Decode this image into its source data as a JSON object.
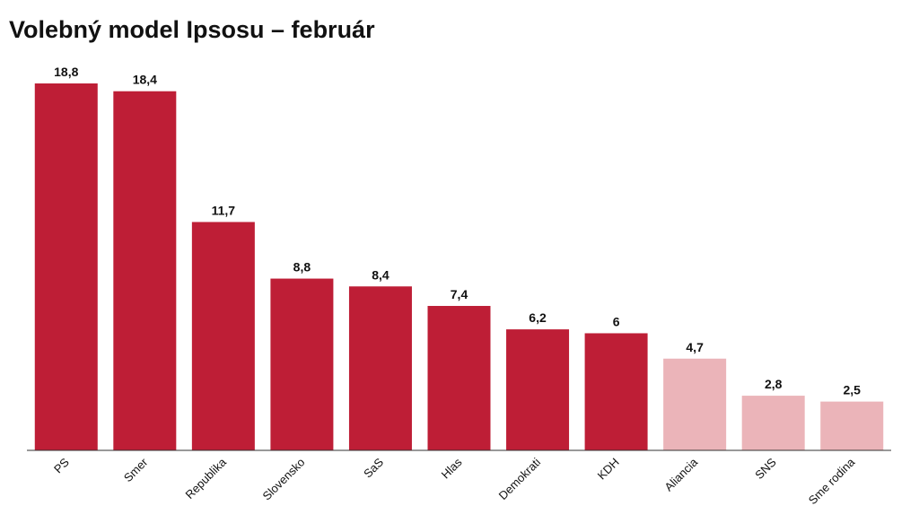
{
  "chart_data": {
    "type": "bar",
    "title": "Volebný model Ipsosu – február",
    "categories": [
      "PS",
      "Smer",
      "Republika",
      "Slovensko",
      "SaS",
      "Hlas",
      "Demokrati",
      "KDH",
      "Aliancia",
      "SNS",
      "Sme rodina"
    ],
    "values": [
      18.8,
      18.4,
      11.7,
      8.8,
      8.4,
      7.4,
      6.2,
      6,
      4.7,
      2.8,
      2.5
    ],
    "value_labels": [
      "18,8",
      "18,4",
      "11,7",
      "8,8",
      "8,4",
      "7,4",
      "6,2",
      "6",
      "4,7",
      "2,8",
      "2,5"
    ],
    "colors": [
      "#be1e36",
      "#be1e36",
      "#be1e36",
      "#be1e36",
      "#be1e36",
      "#be1e36",
      "#be1e36",
      "#be1e36",
      "#ebb4b9",
      "#ebb4b9",
      "#ebb4b9"
    ]
  }
}
